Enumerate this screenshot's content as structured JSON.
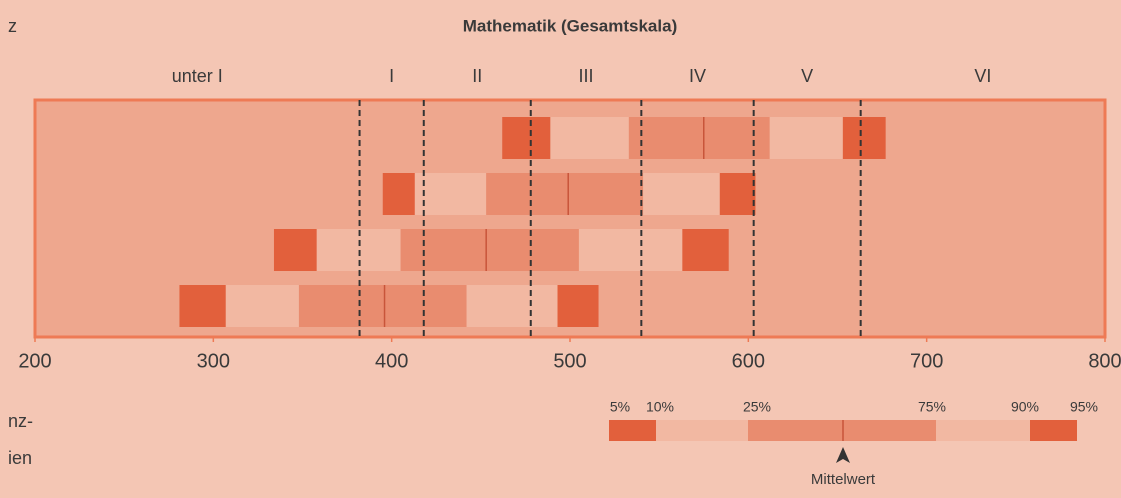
{
  "chart_data": {
    "type": "percentile_bands",
    "title": "Mathematik (Gesamtskala)",
    "xlim": [
      200,
      800
    ],
    "xticks": [
      200,
      300,
      400,
      500,
      600,
      700,
      800
    ],
    "level_labels": [
      "unter I",
      "I",
      "II",
      "III",
      "IV",
      "V",
      "VI"
    ],
    "level_bounds": [
      382,
      418,
      478,
      540,
      603,
      663
    ],
    "colors": {
      "outer": "#e2603c",
      "middle": "#f2b8a2",
      "inner": "#e98c6f",
      "frame": "#ee7a55",
      "dash": "#333333"
    },
    "rows": [
      [
        462,
        489,
        533,
        575,
        612,
        653,
        677
      ],
      [
        395,
        413,
        453,
        499,
        541,
        584,
        604
      ],
      [
        334,
        358,
        405,
        453,
        505,
        563,
        589
      ],
      [
        281,
        307,
        348,
        396,
        442,
        493,
        516
      ]
    ],
    "legend": {
      "labels": [
        "5%",
        "10%",
        "25%",
        "75%",
        "90%",
        "95%"
      ],
      "mean_label": "Mittelwert"
    },
    "side_texts": [
      "z",
      "nz-",
      "ien"
    ]
  }
}
